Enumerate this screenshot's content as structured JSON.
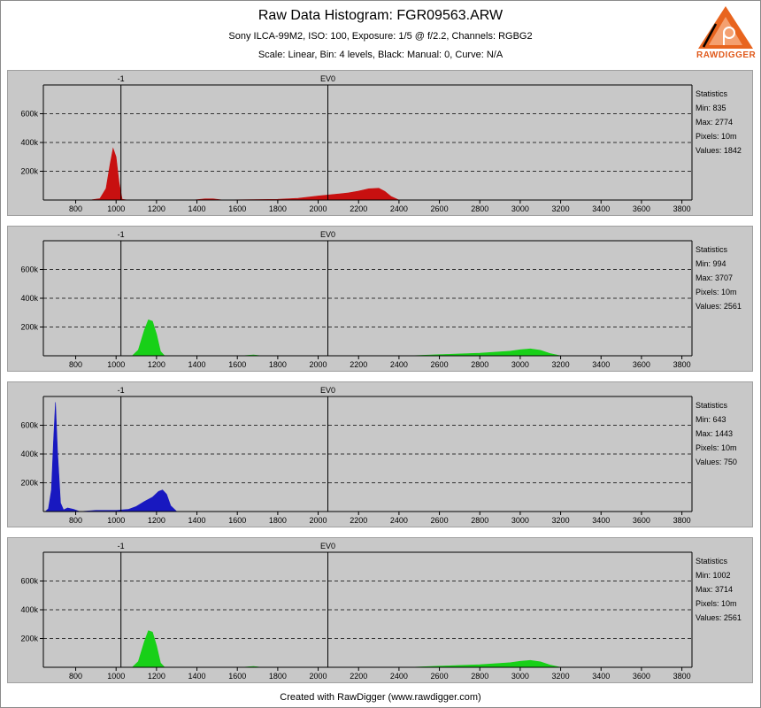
{
  "header": {
    "title": "Raw Data Histogram: FGR09563.ARW",
    "subtitle1": "Sony ILCA-99M2, ISO: 100, Exposure: 1/5 @ f/2.2, Channels: RGBG2",
    "subtitle2": "Scale: Linear, Bin: 4 levels, Black: Manual: 0, Curve: N/A",
    "logo_text": "RAWDIGGER"
  },
  "footer": {
    "text": "Created with RawDigger (www.rawdigger.com)"
  },
  "colors": {
    "red": "#c81010",
    "green": "#18d018",
    "blue": "#1818c0",
    "background": "#c8c8c8"
  },
  "chart_data": [
    {
      "type": "area",
      "channel": "R",
      "color": "#c81010",
      "xlim": [
        640,
        3850
      ],
      "ylim": [
        0,
        800000
      ],
      "x_ticks": [
        800,
        1000,
        1200,
        1400,
        1600,
        1800,
        2000,
        2200,
        2400,
        2600,
        2800,
        3000,
        3200,
        3400,
        3600,
        3800
      ],
      "x_tick_labels": [
        "800",
        "1000",
        "1200",
        "1400",
        "1600",
        "1800",
        "2000",
        "2200",
        "2400",
        "2600",
        "2800",
        "3000",
        "3200",
        "3400",
        "3600",
        "3800"
      ],
      "y_ticks": [
        200000,
        400000,
        600000
      ],
      "y_tick_labels": [
        "200k",
        "400k",
        "600k"
      ],
      "top_markers": [
        {
          "label": "-1",
          "x": 1024
        },
        {
          "label": "EV0",
          "x": 2048
        }
      ],
      "x": [
        830,
        880,
        920,
        950,
        970,
        985,
        1000,
        1015,
        1030,
        1060,
        1380,
        1440,
        1480,
        1530,
        1800,
        1900,
        2000,
        2100,
        2150,
        2200,
        2250,
        2300,
        2330,
        2360,
        2400
      ],
      "y": [
        0,
        2000,
        10000,
        80000,
        250000,
        360000,
        300000,
        120000,
        5000,
        0,
        0,
        8000,
        8000,
        0,
        5000,
        12000,
        28000,
        42000,
        50000,
        62000,
        78000,
        82000,
        60000,
        25000,
        0
      ],
      "statistics": {
        "title": "Statistics",
        "min": "Min: 835",
        "max": "Max: 2774",
        "pixels": "Pixels: 10m",
        "values": "Values: 1842"
      }
    },
    {
      "type": "area",
      "channel": "G",
      "color": "#18d018",
      "xlim": [
        640,
        3850
      ],
      "ylim": [
        0,
        800000
      ],
      "x_ticks": [
        800,
        1000,
        1200,
        1400,
        1600,
        1800,
        2000,
        2200,
        2400,
        2600,
        2800,
        3000,
        3200,
        3400,
        3600,
        3800
      ],
      "x_tick_labels": [
        "800",
        "1000",
        "1200",
        "1400",
        "1600",
        "1800",
        "2000",
        "2200",
        "2400",
        "2600",
        "2800",
        "3000",
        "3200",
        "3400",
        "3600",
        "3800"
      ],
      "y_ticks": [
        200000,
        400000,
        600000
      ],
      "y_tick_labels": [
        "200k",
        "400k",
        "600k"
      ],
      "top_markers": [
        {
          "label": "-1",
          "x": 1024
        },
        {
          "label": "EV0",
          "x": 2048
        }
      ],
      "x": [
        1080,
        1110,
        1140,
        1160,
        1180,
        1200,
        1220,
        1240,
        1300,
        1620,
        1680,
        1720,
        2450,
        2600,
        2800,
        2950,
        3000,
        3050,
        3100,
        3150,
        3200
      ],
      "y": [
        0,
        40000,
        180000,
        250000,
        240000,
        150000,
        30000,
        0,
        0,
        0,
        6000,
        0,
        0,
        8000,
        18000,
        32000,
        42000,
        48000,
        38000,
        15000,
        0
      ],
      "statistics": {
        "title": "Statistics",
        "min": "Min: 994",
        "max": "Max: 3707",
        "pixels": "Pixels: 10m",
        "values": "Values: 2561"
      }
    },
    {
      "type": "area",
      "channel": "B",
      "color": "#1818c0",
      "xlim": [
        640,
        3850
      ],
      "ylim": [
        0,
        800000
      ],
      "x_ticks": [
        800,
        1000,
        1200,
        1400,
        1600,
        1800,
        2000,
        2200,
        2400,
        2600,
        2800,
        3000,
        3200,
        3400,
        3600,
        3800
      ],
      "x_tick_labels": [
        "800",
        "1000",
        "1200",
        "1400",
        "1600",
        "1800",
        "2000",
        "2200",
        "2400",
        "2600",
        "2800",
        "3000",
        "3200",
        "3400",
        "3600",
        "3800"
      ],
      "y_ticks": [
        200000,
        400000,
        600000
      ],
      "y_tick_labels": [
        "200k",
        "400k",
        "600k"
      ],
      "top_markers": [
        {
          "label": "-1",
          "x": 1024
        },
        {
          "label": "EV0",
          "x": 2048
        }
      ],
      "x": [
        650,
        665,
        680,
        690,
        700,
        710,
        725,
        740,
        760,
        790,
        820,
        900,
        1000,
        1060,
        1100,
        1140,
        1180,
        1210,
        1230,
        1250,
        1270,
        1300
      ],
      "y": [
        0,
        20000,
        150000,
        480000,
        760000,
        420000,
        60000,
        12000,
        25000,
        15000,
        0,
        8000,
        8000,
        15000,
        35000,
        70000,
        100000,
        140000,
        150000,
        120000,
        40000,
        0
      ],
      "statistics": {
        "title": "Statistics",
        "min": "Min: 643",
        "max": "Max: 1443",
        "pixels": "Pixels: 10m",
        "values": "Values: 750"
      }
    },
    {
      "type": "area",
      "channel": "G2",
      "color": "#18d018",
      "xlim": [
        640,
        3850
      ],
      "ylim": [
        0,
        800000
      ],
      "x_ticks": [
        800,
        1000,
        1200,
        1400,
        1600,
        1800,
        2000,
        2200,
        2400,
        2600,
        2800,
        3000,
        3200,
        3400,
        3600,
        3800
      ],
      "x_tick_labels": [
        "800",
        "1000",
        "1200",
        "1400",
        "1600",
        "1800",
        "2000",
        "2200",
        "2400",
        "2600",
        "2800",
        "3000",
        "3200",
        "3400",
        "3600",
        "3800"
      ],
      "y_ticks": [
        200000,
        400000,
        600000
      ],
      "y_tick_labels": [
        "200k",
        "400k",
        "600k"
      ],
      "top_markers": [
        {
          "label": "-1",
          "x": 1024
        },
        {
          "label": "EV0",
          "x": 2048
        }
      ],
      "x": [
        1080,
        1110,
        1140,
        1160,
        1180,
        1200,
        1220,
        1240,
        1300,
        1620,
        1680,
        1720,
        2450,
        2600,
        2800,
        2950,
        3000,
        3050,
        3100,
        3150,
        3200
      ],
      "y": [
        0,
        40000,
        180000,
        255000,
        245000,
        150000,
        30000,
        0,
        0,
        0,
        6000,
        0,
        0,
        8000,
        18000,
        32000,
        42000,
        48000,
        38000,
        15000,
        0
      ],
      "statistics": {
        "title": "Statistics",
        "min": "Min: 1002",
        "max": "Max: 3714",
        "pixels": "Pixels: 10m",
        "values": "Values: 2561"
      }
    }
  ]
}
